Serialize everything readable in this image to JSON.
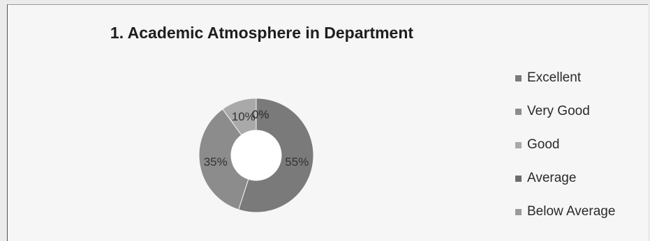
{
  "chart_data": {
    "type": "pie",
    "variant": "donut",
    "title": "1. Academic Atmosphere in Department",
    "categories": [
      "Excellent",
      "Very Good",
      "Good",
      "Average",
      "Below Average"
    ],
    "values": [
      55,
      35,
      10,
      0,
      0
    ],
    "labels": [
      "55%",
      "35%",
      "10%",
      "0%",
      "0%"
    ],
    "colors": [
      "#7a7a7a",
      "#8c8c8c",
      "#a9a9a9",
      "#6c6c6c",
      "#9a9a9a"
    ],
    "legend_position": "right"
  }
}
